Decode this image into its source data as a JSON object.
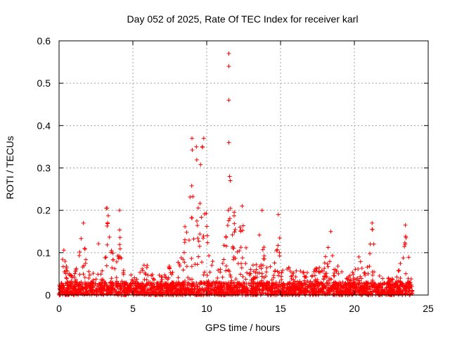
{
  "chart_data": {
    "type": "scatter",
    "title": "Day 052 of 2025, Rate Of TEC Index for receiver karl",
    "xlabel": "GPS time / hours",
    "ylabel": "ROTI / TECUs",
    "xlim": [
      0,
      25
    ],
    "ylim": [
      0,
      0.6
    ],
    "xticks": [
      0,
      5,
      10,
      15,
      20,
      25
    ],
    "yticks": [
      0,
      0.1,
      0.2,
      0.3,
      0.4,
      0.5,
      0.6
    ],
    "xtick_labels": [
      "0",
      "5",
      "10",
      "15",
      "20",
      "25"
    ],
    "ytick_labels": [
      "0",
      "0.1",
      "0.2",
      "0.3",
      "0.4",
      "0.5",
      "0.6"
    ],
    "grid": true,
    "marker": "+",
    "color": "#ff0000",
    "data_range": [
      0,
      24
    ],
    "baseline_max": 0.03,
    "envelope": [
      [
        0.0,
        0.05
      ],
      [
        0.3,
        0.12
      ],
      [
        0.5,
        0.08
      ],
      [
        1.0,
        0.04
      ],
      [
        1.4,
        0.11
      ],
      [
        1.6,
        0.17
      ],
      [
        1.9,
        0.06
      ],
      [
        2.3,
        0.05
      ],
      [
        2.7,
        0.13
      ],
      [
        3.0,
        0.04
      ],
      [
        3.3,
        0.2
      ],
      [
        3.6,
        0.14
      ],
      [
        3.9,
        0.1
      ],
      [
        4.1,
        0.2
      ],
      [
        4.3,
        0.06
      ],
      [
        4.7,
        0.06
      ],
      [
        5.2,
        0.04
      ],
      [
        5.8,
        0.08
      ],
      [
        6.4,
        0.05
      ],
      [
        7.0,
        0.05
      ],
      [
        7.4,
        0.07
      ],
      [
        7.9,
        0.06
      ],
      [
        8.4,
        0.12
      ],
      [
        8.7,
        0.24
      ],
      [
        9.0,
        0.37
      ],
      [
        9.2,
        0.34
      ],
      [
        9.5,
        0.3
      ],
      [
        9.8,
        0.37
      ],
      [
        10.1,
        0.12
      ],
      [
        10.5,
        0.08
      ],
      [
        11.0,
        0.06
      ],
      [
        11.4,
        0.26
      ],
      [
        11.8,
        0.23
      ],
      [
        12.1,
        0.18
      ],
      [
        12.4,
        0.21
      ],
      [
        12.8,
        0.1
      ],
      [
        13.3,
        0.06
      ],
      [
        13.7,
        0.2
      ],
      [
        14.0,
        0.08
      ],
      [
        14.4,
        0.08
      ],
      [
        14.8,
        0.19
      ],
      [
        15.1,
        0.12
      ],
      [
        15.5,
        0.07
      ],
      [
        16.0,
        0.06
      ],
      [
        16.6,
        0.06
      ],
      [
        17.3,
        0.06
      ],
      [
        17.9,
        0.09
      ],
      [
        18.4,
        0.15
      ],
      [
        18.7,
        0.08
      ],
      [
        19.3,
        0.05
      ],
      [
        19.8,
        0.05
      ],
      [
        20.3,
        0.09
      ],
      [
        20.8,
        0.05
      ],
      [
        21.2,
        0.17
      ],
      [
        21.5,
        0.05
      ],
      [
        22.2,
        0.04
      ],
      [
        22.8,
        0.04
      ],
      [
        23.3,
        0.1
      ],
      [
        23.5,
        0.17
      ],
      [
        23.8,
        0.06
      ],
      [
        24.0,
        0.04
      ]
    ],
    "outliers": [
      [
        11.5,
        0.57
      ],
      [
        11.5,
        0.54
      ],
      [
        11.5,
        0.46
      ],
      [
        11.5,
        0.36
      ],
      [
        11.55,
        0.28
      ],
      [
        11.6,
        0.27
      ],
      [
        9.0,
        0.37
      ],
      [
        9.8,
        0.37
      ],
      [
        9.3,
        0.35
      ],
      [
        9.7,
        0.35
      ],
      [
        3.2,
        0.205
      ],
      [
        3.25,
        0.205
      ],
      [
        4.1,
        0.2
      ],
      [
        13.75,
        0.2
      ],
      [
        12.4,
        0.21
      ],
      [
        14.85,
        0.19
      ],
      [
        21.2,
        0.17
      ],
      [
        23.45,
        0.165
      ],
      [
        1.65,
        0.17
      ],
      [
        18.4,
        0.15
      ],
      [
        23.5,
        0.135
      ],
      [
        20.3,
        0.09
      ],
      [
        22.3,
        0.04
      ]
    ]
  }
}
